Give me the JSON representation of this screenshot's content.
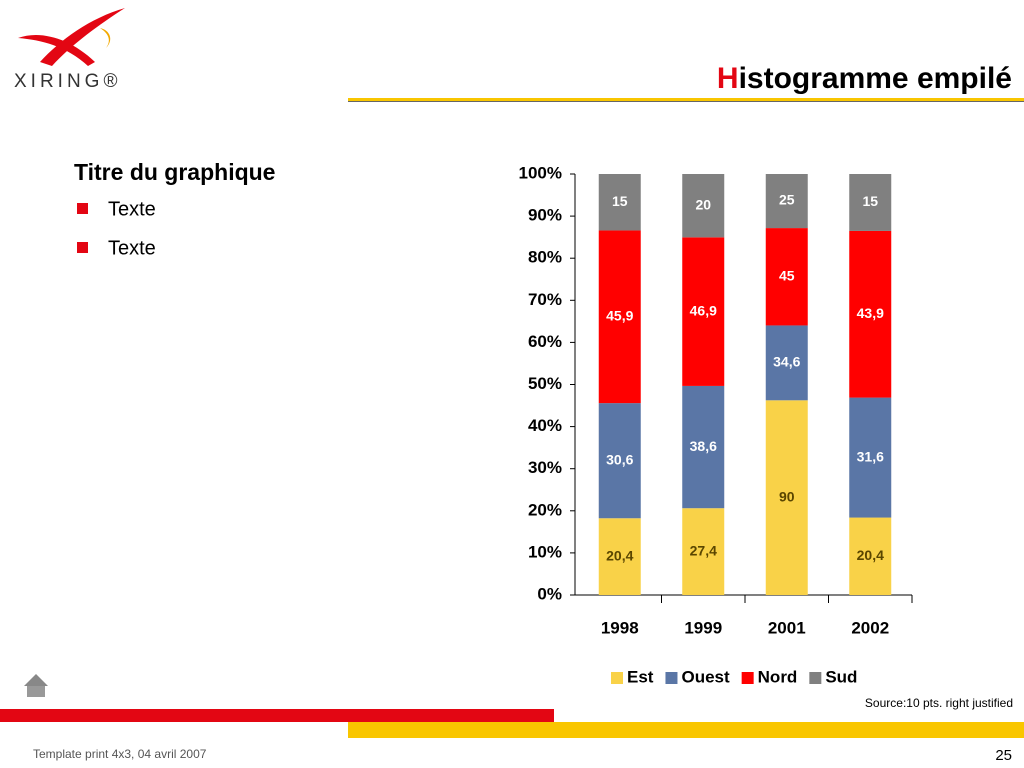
{
  "header": {
    "logo": "XIRING®",
    "title": "Histogramme empilé"
  },
  "content": {
    "heading": "Titre du graphique",
    "bullets": [
      "Texte",
      "Texte"
    ]
  },
  "chart_data": {
    "type": "bar",
    "stacked_percent": true,
    "categories": [
      "1998",
      "1999",
      "2001",
      "2002"
    ],
    "series": [
      {
        "name": "Est",
        "color": "#f9d248",
        "label_color": "#5a4600",
        "values": [
          20.4,
          27.4,
          90,
          20.4
        ],
        "value_labels": [
          "20,4",
          "27,4",
          "90",
          "20,4"
        ]
      },
      {
        "name": "Ouest",
        "color": "#5a76a6",
        "label_color": "#ffffff",
        "values": [
          30.6,
          38.6,
          34.6,
          31.6
        ],
        "value_labels": [
          "30,6",
          "38,6",
          "34,6",
          "31,6"
        ]
      },
      {
        "name": "Nord",
        "color": "#ff0000",
        "label_color": "#ffffff",
        "values": [
          45.9,
          46.9,
          45,
          43.9
        ],
        "value_labels": [
          "45,9",
          "46,9",
          "45",
          "43,9"
        ]
      },
      {
        "name": "Sud",
        "color": "#808080",
        "label_color": "#ffffff",
        "values": [
          15,
          20,
          25,
          15
        ],
        "value_labels": [
          "15",
          "20",
          "25",
          "15"
        ]
      }
    ],
    "ylim": [
      0,
      100
    ],
    "yticks": [
      {
        "value": 0,
        "label": "0%"
      },
      {
        "value": 10,
        "label": "10%"
      },
      {
        "value": 20,
        "label": "20%"
      },
      {
        "value": 30,
        "label": "30%"
      },
      {
        "value": 40,
        "label": "40%"
      },
      {
        "value": 50,
        "label": "50%"
      },
      {
        "value": 60,
        "label": "60%"
      },
      {
        "value": 70,
        "label": "70%"
      },
      {
        "value": 80,
        "label": "80%"
      },
      {
        "value": 90,
        "label": "90%"
      },
      {
        "value": 100,
        "label": "100%"
      }
    ],
    "legend": "bottom"
  },
  "source": "Source:10 pts. right justified",
  "footer": {
    "template": "Template print 4x3, 04 avril 2007",
    "page": "25"
  }
}
